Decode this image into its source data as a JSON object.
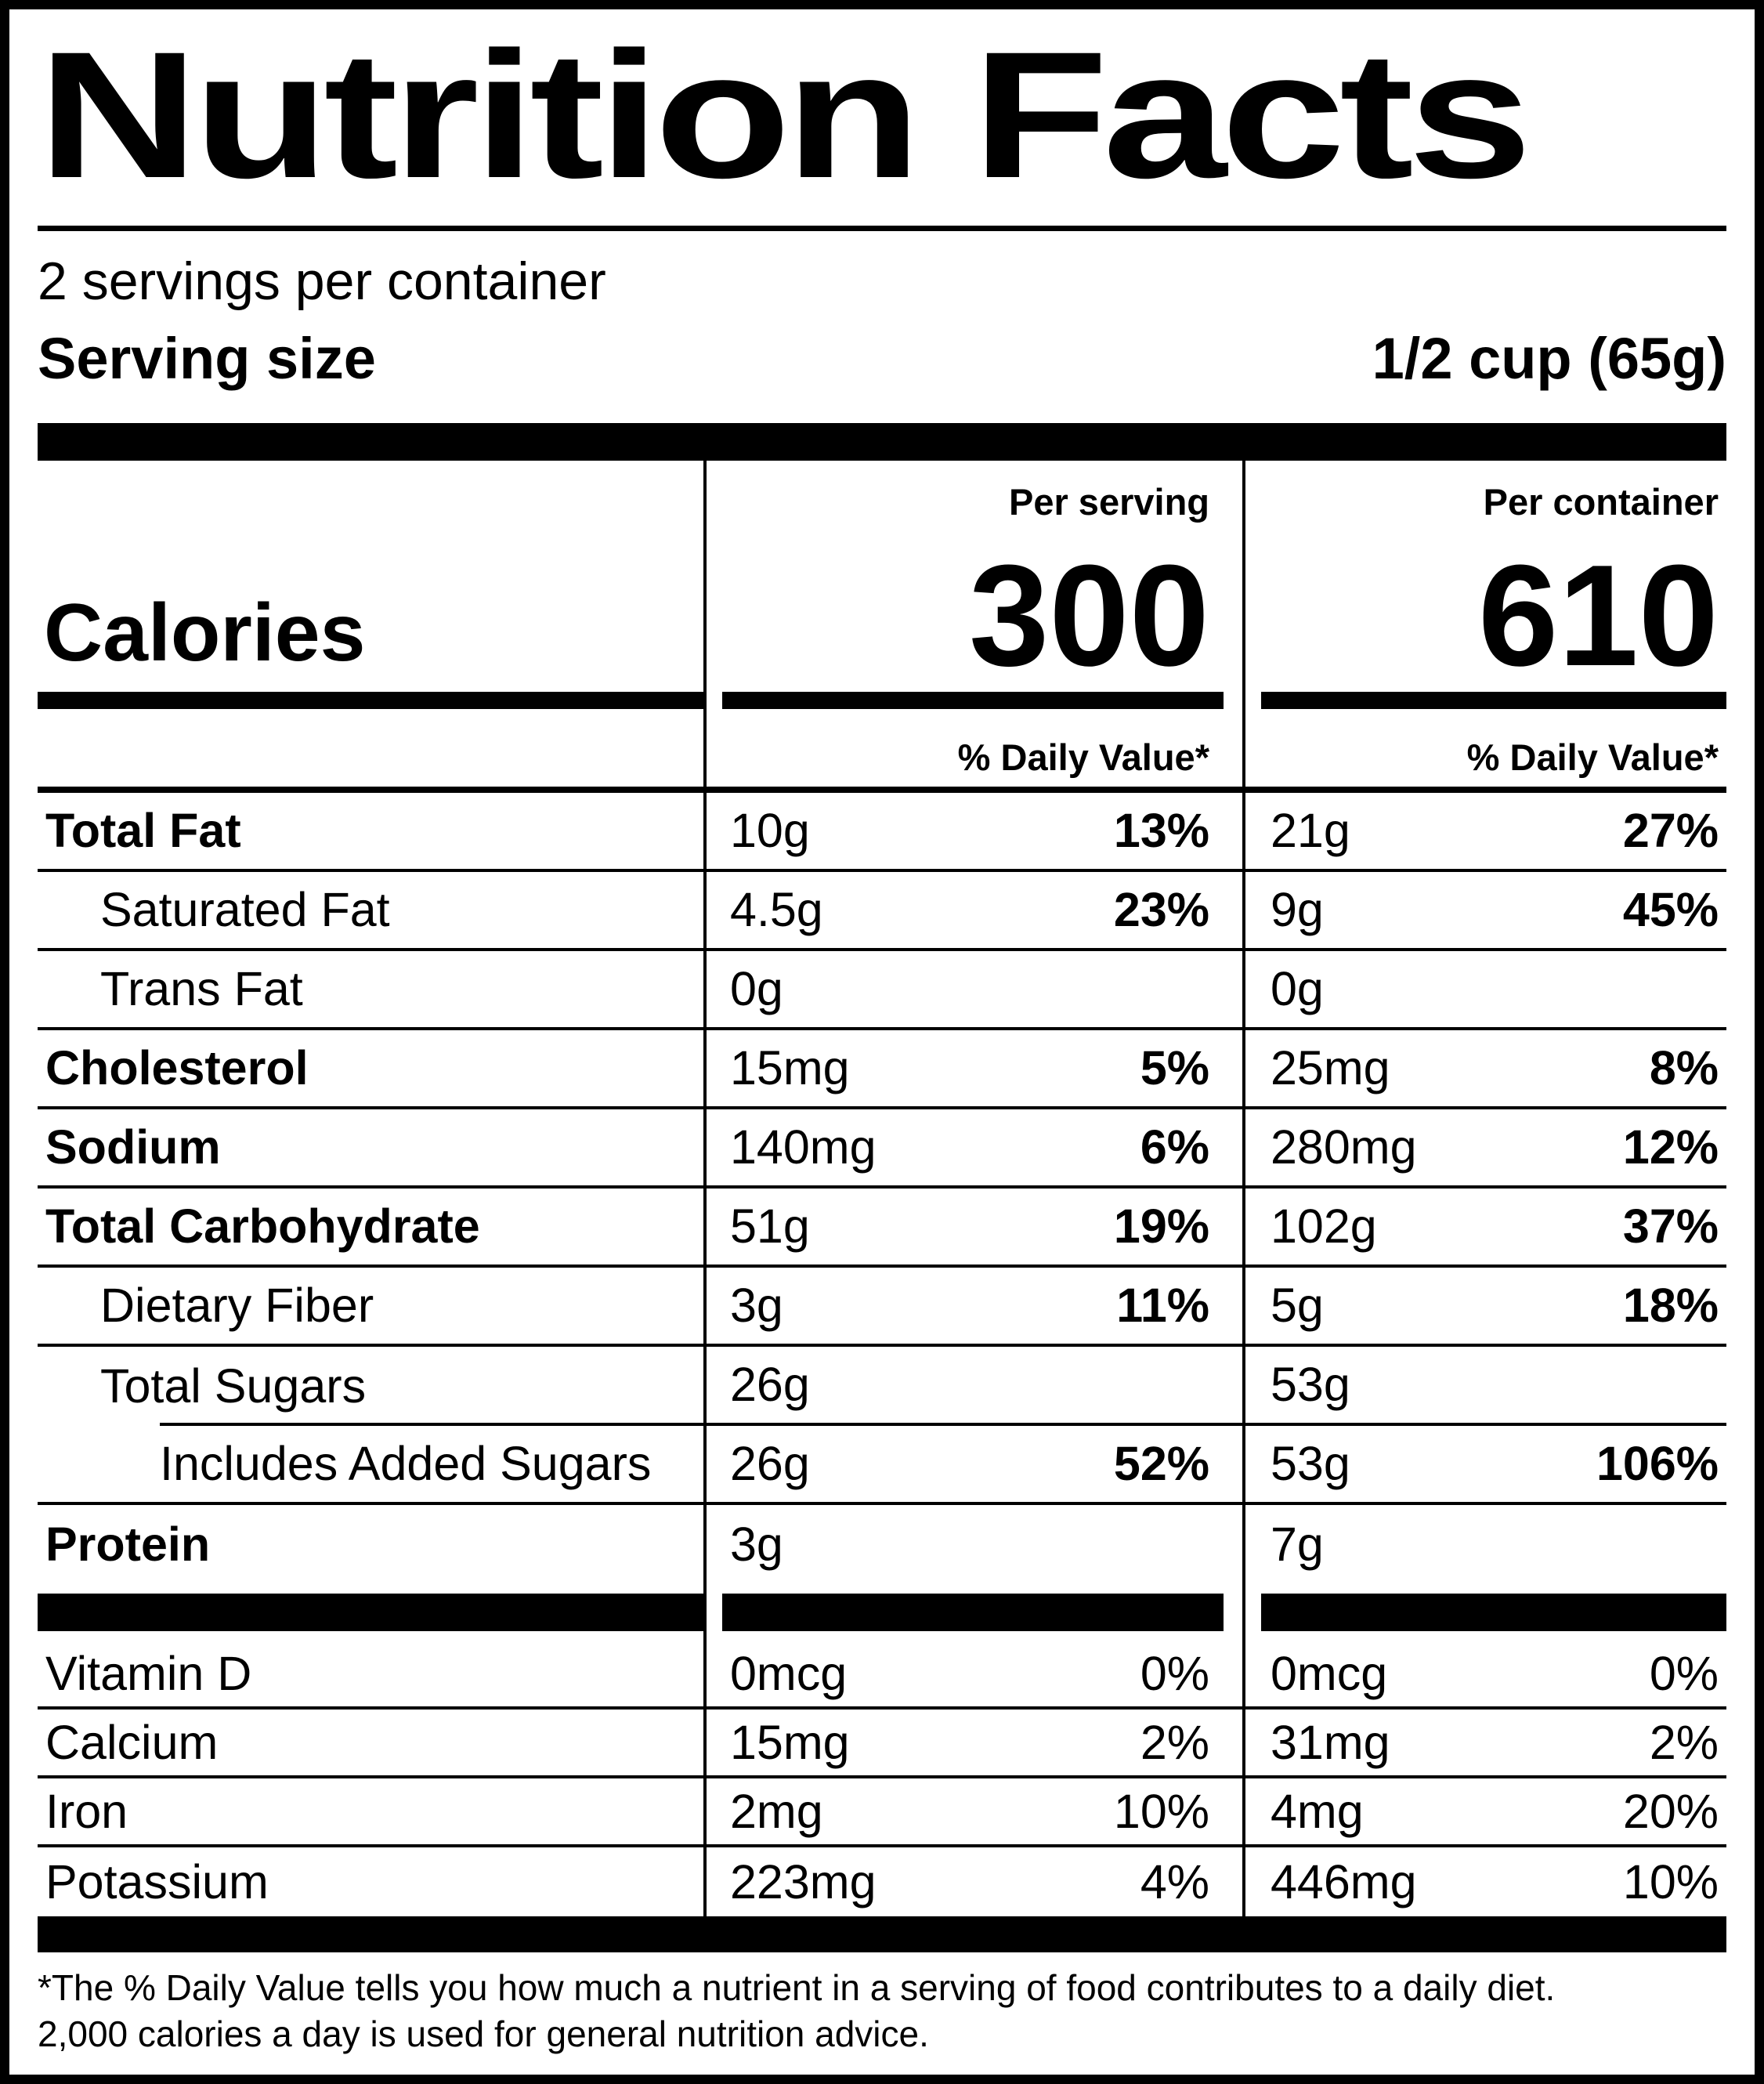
{
  "header": {
    "title": "Nutrition Facts",
    "servings_per_container": "2 servings per container",
    "serving_size_label": "Serving size",
    "serving_size_value": "1/2 cup (65g)"
  },
  "columns": {
    "per_serving": "Per serving",
    "per_container": "Per container"
  },
  "calories": {
    "label": "Calories",
    "per_serving": "300",
    "per_container": "610"
  },
  "daily_value_header": "% Daily Value*",
  "rows": [
    {
      "label": "Total Fat",
      "ps_amt": "10g",
      "ps_dv": "13%",
      "pc_amt": "21g",
      "pc_dv": "27%"
    },
    {
      "label": "Saturated Fat",
      "ps_amt": "4.5g",
      "ps_dv": "23%",
      "pc_amt": "9g",
      "pc_dv": "45%"
    },
    {
      "label": "Trans Fat",
      "ps_amt": "0g",
      "ps_dv": "",
      "pc_amt": "0g",
      "pc_dv": ""
    },
    {
      "label": "Cholesterol",
      "ps_amt": "15mg",
      "ps_dv": "5%",
      "pc_amt": "25mg",
      "pc_dv": "8%"
    },
    {
      "label": "Sodium",
      "ps_amt": "140mg",
      "ps_dv": "6%",
      "pc_amt": "280mg",
      "pc_dv": "12%"
    },
    {
      "label": "Total Carbohydrate",
      "ps_amt": "51g",
      "ps_dv": "19%",
      "pc_amt": "102g",
      "pc_dv": "37%"
    },
    {
      "label": "Dietary Fiber",
      "ps_amt": "3g",
      "ps_dv": "11%",
      "pc_amt": "5g",
      "pc_dv": "18%"
    },
    {
      "label": "Total Sugars",
      "ps_amt": "26g",
      "ps_dv": "",
      "pc_amt": "53g",
      "pc_dv": ""
    },
    {
      "label": "Includes Added Sugars",
      "ps_amt": "26g",
      "ps_dv": "52%",
      "pc_amt": "53g",
      "pc_dv": "106%"
    },
    {
      "label": "Protein",
      "ps_amt": "3g",
      "ps_dv": "",
      "pc_amt": "7g",
      "pc_dv": ""
    }
  ],
  "vitamins": [
    {
      "label": "Vitamin D",
      "ps_amt": "0mcg",
      "ps_dv": "0%",
      "pc_amt": "0mcg",
      "pc_dv": "0%"
    },
    {
      "label": "Calcium",
      "ps_amt": "15mg",
      "ps_dv": "2%",
      "pc_amt": "31mg",
      "pc_dv": "2%"
    },
    {
      "label": "Iron",
      "ps_amt": "2mg",
      "ps_dv": "10%",
      "pc_amt": "4mg",
      "pc_dv": "20%"
    },
    {
      "label": "Potassium",
      "ps_amt": "223mg",
      "ps_dv": "4%",
      "pc_amt": "446mg",
      "pc_dv": "10%"
    }
  ],
  "footnote": {
    "line1": "*The % Daily Value tells you how much a nutrient in a serving of food contributes to a daily diet.",
    "line2": "2,000 calories a day is used for general nutrition advice."
  },
  "colors": {
    "ink": "#000000",
    "paper": "#ffffff"
  }
}
